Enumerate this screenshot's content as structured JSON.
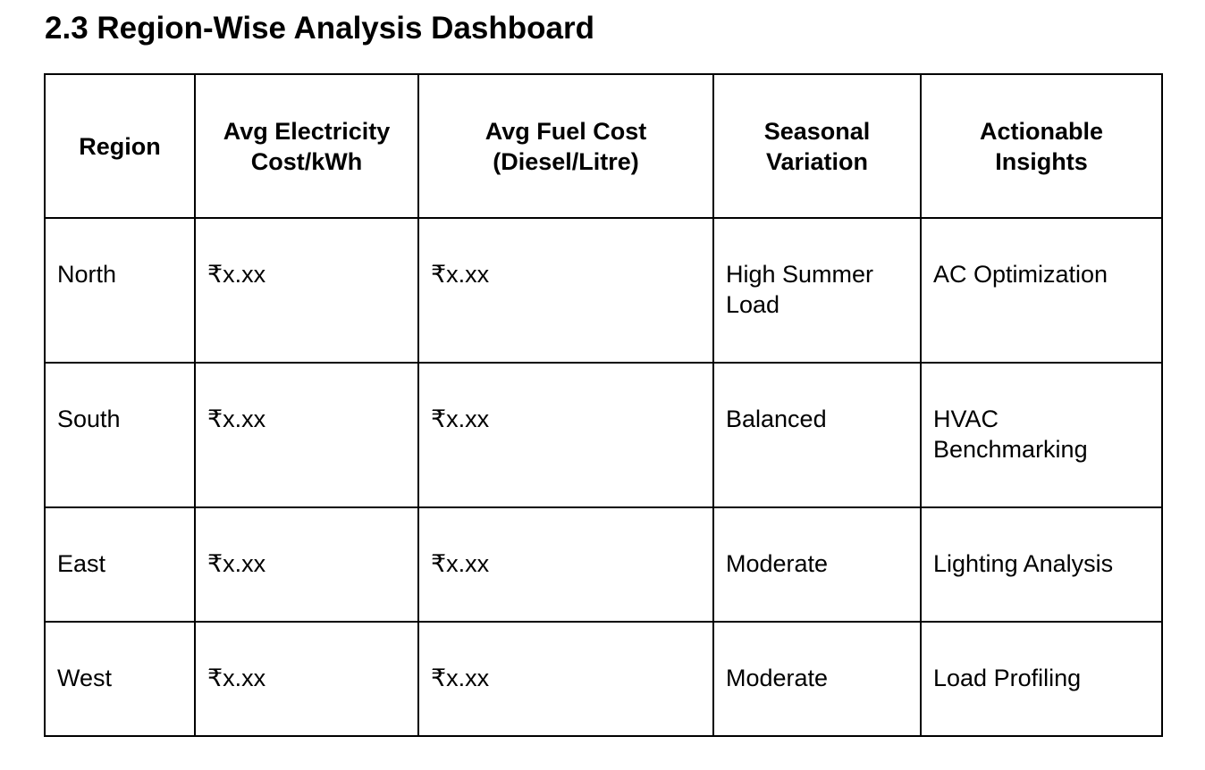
{
  "page": {
    "title": "2.3 Region-Wise Analysis Dashboard"
  },
  "table": {
    "headers": [
      "Region",
      "Avg Electricity Cost/kWh",
      "Avg Fuel Cost (Diesel/Litre)",
      "Seasonal Variation",
      "Actionable Insights"
    ],
    "rows": [
      {
        "region": "North",
        "electricity": "₹x.xx",
        "fuel": "₹x.xx",
        "seasonal": "High Summer Load",
        "insight": "AC Optimization"
      },
      {
        "region": "South",
        "electricity": "₹x.xx",
        "fuel": "₹x.xx",
        "seasonal": "Balanced",
        "insight": "HVAC Benchmarking"
      },
      {
        "region": "East",
        "electricity": "₹x.xx",
        "fuel": "₹x.xx",
        "seasonal": "Moderate",
        "insight": "Lighting Analysis"
      },
      {
        "region": "West",
        "electricity": "₹x.xx",
        "fuel": "₹x.xx",
        "seasonal": "Moderate",
        "insight": "Load Profiling"
      }
    ]
  }
}
